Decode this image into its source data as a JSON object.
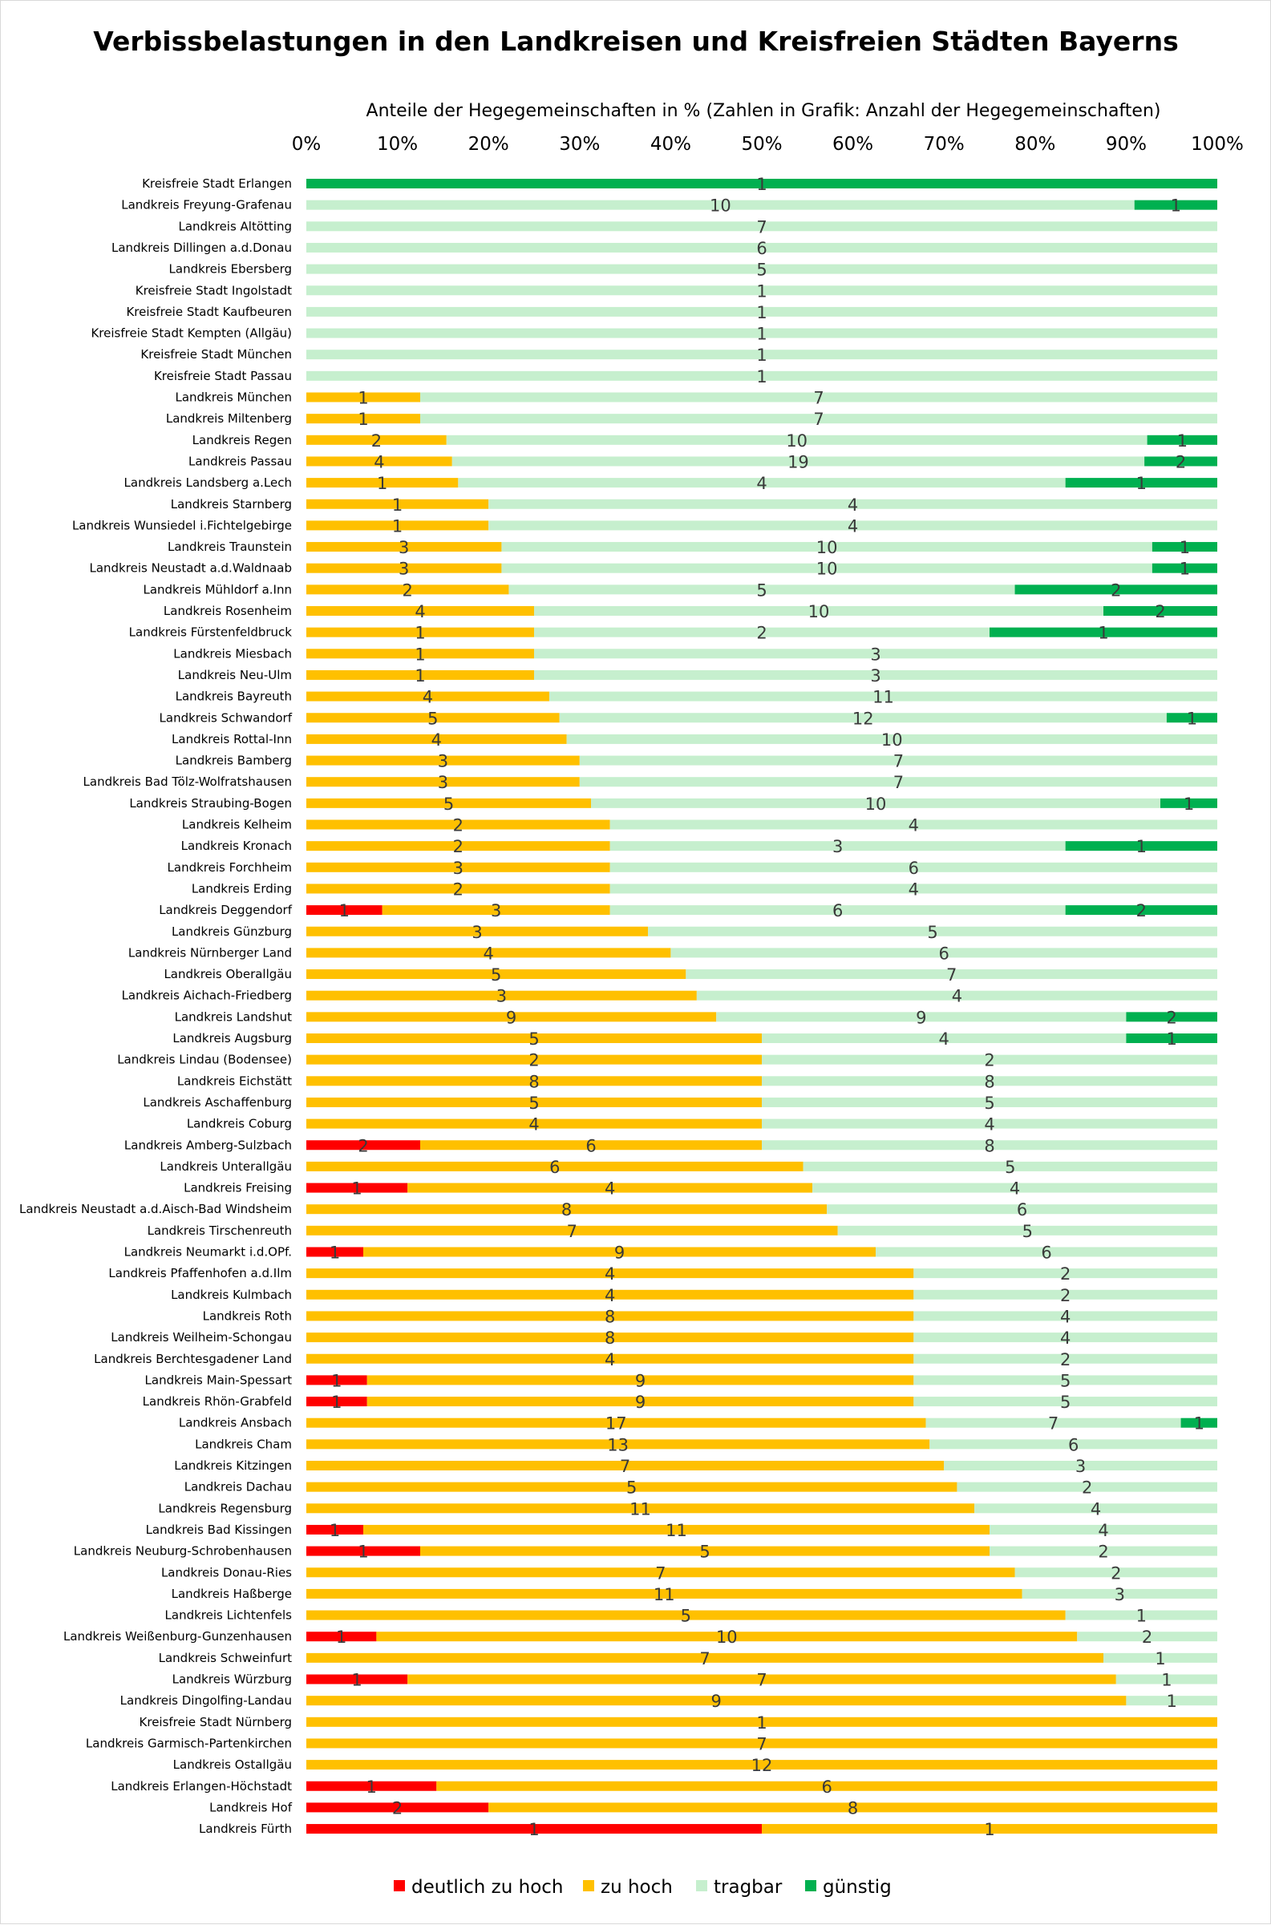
{
  "chart_data": {
    "type": "bar",
    "orientation": "horizontal",
    "stacked": "percent",
    "title": "Verbissbelastungen in den Landkreisen und Kreisfreien Städten Bayerns",
    "axis_title": "Anteile der Hegegemeinschaften in % (Zahlen in Grafik: Anzahl der Hegegemeinschaften)",
    "xlim": [
      0,
      100
    ],
    "x_ticks": [
      "0%",
      "10%",
      "20%",
      "30%",
      "40%",
      "50%",
      "60%",
      "70%",
      "80%",
      "90%",
      "100%"
    ],
    "grid": false,
    "legend_position": "bottom",
    "categories": [
      "Kreisfreie Stadt Erlangen",
      "Landkreis Freyung-Grafenau",
      "Landkreis Altötting",
      "Landkreis Dillingen a.d.Donau",
      "Landkreis Ebersberg",
      "Kreisfreie Stadt Ingolstadt",
      "Kreisfreie Stadt Kaufbeuren",
      "Kreisfreie Stadt Kempten (Allgäu)",
      "Kreisfreie Stadt München",
      "Kreisfreie Stadt Passau",
      "Landkreis München",
      "Landkreis Miltenberg",
      "Landkreis Regen",
      "Landkreis Passau",
      "Landkreis Landsberg a.Lech",
      "Landkreis Starnberg",
      "Landkreis Wunsiedel i.Fichtelgebirge",
      "Landkreis Traunstein",
      "Landkreis Neustadt a.d.Waldnaab",
      "Landkreis Mühldorf a.Inn",
      "Landkreis Rosenheim",
      "Landkreis Fürstenfeldbruck",
      "Landkreis Miesbach",
      "Landkreis Neu-Ulm",
      "Landkreis Bayreuth",
      "Landkreis Schwandorf",
      "Landkreis Rottal-Inn",
      "Landkreis Bamberg",
      "Landkreis Bad Tölz-Wolfratshausen",
      "Landkreis Straubing-Bogen",
      "Landkreis Kelheim",
      "Landkreis Kronach",
      "Landkreis Forchheim",
      "Landkreis Erding",
      "Landkreis Deggendorf",
      "Landkreis Günzburg",
      "Landkreis Nürnberger Land",
      "Landkreis Oberallgäu",
      "Landkreis Aichach-Friedberg",
      "Landkreis Landshut",
      "Landkreis Augsburg",
      "Landkreis Lindau (Bodensee)",
      "Landkreis Eichstätt",
      "Landkreis Aschaffenburg",
      "Landkreis Coburg",
      "Landkreis Amberg-Sulzbach",
      "Landkreis Unterallgäu",
      "Landkreis Freising",
      "Landkreis Neustadt a.d.Aisch-Bad Windsheim",
      "Landkreis Tirschenreuth",
      "Landkreis Neumarkt i.d.OPf.",
      "Landkreis Pfaffenhofen a.d.Ilm",
      "Landkreis Kulmbach",
      "Landkreis Roth",
      "Landkreis Weilheim-Schongau",
      "Landkreis Berchtesgadener Land",
      "Landkreis Main-Spessart",
      "Landkreis Rhön-Grabfeld",
      "Landkreis Ansbach",
      "Landkreis Cham",
      "Landkreis Kitzingen",
      "Landkreis Dachau",
      "Landkreis Regensburg",
      "Landkreis Bad Kissingen",
      "Landkreis Neuburg-Schrobenhausen",
      "Landkreis Donau-Ries",
      "Landkreis Haßberge",
      "Landkreis Lichtenfels",
      "Landkreis Weißenburg-Gunzenhausen",
      "Landkreis Schweinfurt",
      "Landkreis Würzburg",
      "Landkreis Dingolfing-Landau",
      "Kreisfreie Stadt Nürnberg",
      "Landkreis Garmisch-Partenkirchen",
      "Landkreis Ostallgäu",
      "Landkreis Erlangen-Höchstadt",
      "Landkreis Hof",
      "Landkreis Fürth"
    ],
    "series": [
      {
        "name": "deutlich zu hoch",
        "color": "#ff0000",
        "values": [
          0,
          0,
          0,
          0,
          0,
          0,
          0,
          0,
          0,
          0,
          0,
          0,
          0,
          0,
          0,
          0,
          0,
          0,
          0,
          0,
          0,
          0,
          0,
          0,
          0,
          0,
          0,
          0,
          0,
          0,
          0,
          0,
          0,
          0,
          1,
          0,
          0,
          0,
          0,
          0,
          0,
          0,
          0,
          0,
          0,
          2,
          0,
          1,
          0,
          0,
          1,
          0,
          0,
          0,
          0,
          0,
          1,
          1,
          0,
          0,
          0,
          0,
          0,
          1,
          1,
          0,
          0,
          0,
          1,
          0,
          1,
          0,
          0,
          0,
          0,
          1,
          2,
          1
        ]
      },
      {
        "name": "zu hoch",
        "color": "#ffc000",
        "values": [
          0,
          0,
          0,
          0,
          0,
          0,
          0,
          0,
          0,
          0,
          1,
          1,
          2,
          4,
          1,
          1,
          1,
          3,
          3,
          2,
          4,
          1,
          1,
          1,
          4,
          5,
          4,
          3,
          3,
          5,
          2,
          2,
          3,
          2,
          3,
          3,
          4,
          5,
          3,
          9,
          5,
          2,
          8,
          5,
          4,
          6,
          6,
          4,
          8,
          7,
          9,
          4,
          4,
          8,
          8,
          4,
          9,
          9,
          17,
          13,
          7,
          5,
          11,
          11,
          5,
          7,
          11,
          5,
          10,
          7,
          7,
          9,
          1,
          7,
          12,
          6,
          8,
          1
        ]
      },
      {
        "name": "tragbar",
        "color": "#c6efce",
        "values": [
          0,
          10,
          7,
          6,
          5,
          1,
          1,
          1,
          1,
          1,
          7,
          7,
          10,
          19,
          4,
          4,
          4,
          10,
          10,
          5,
          10,
          2,
          3,
          3,
          11,
          12,
          10,
          7,
          7,
          10,
          4,
          3,
          6,
          4,
          6,
          5,
          6,
          7,
          4,
          9,
          4,
          2,
          8,
          5,
          4,
          8,
          5,
          4,
          6,
          5,
          6,
          2,
          2,
          4,
          4,
          2,
          5,
          5,
          7,
          6,
          3,
          2,
          4,
          4,
          2,
          2,
          3,
          1,
          2,
          1,
          1,
          1,
          0,
          0,
          0,
          0,
          0,
          0
        ]
      },
      {
        "name": "günstig",
        "color": "#00b050",
        "values": [
          1,
          1,
          0,
          0,
          0,
          0,
          0,
          0,
          0,
          0,
          0,
          0,
          1,
          2,
          1,
          0,
          0,
          1,
          1,
          2,
          2,
          1,
          0,
          0,
          0,
          1,
          0,
          0,
          0,
          1,
          0,
          1,
          0,
          0,
          2,
          0,
          0,
          0,
          0,
          2,
          1,
          0,
          0,
          0,
          0,
          0,
          0,
          0,
          0,
          0,
          0,
          0,
          0,
          0,
          0,
          0,
          0,
          0,
          1,
          0,
          0,
          0,
          0,
          0,
          0,
          0,
          0,
          0,
          0,
          0,
          0,
          0,
          0,
          0,
          0,
          0,
          0,
          0
        ]
      }
    ]
  }
}
